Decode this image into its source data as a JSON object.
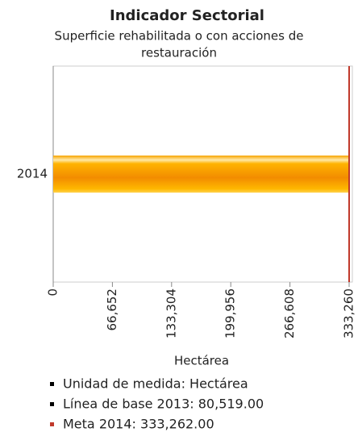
{
  "chart_data": {
    "type": "hbar",
    "title": "Indicador Sectorial",
    "subtitle": [
      "Superficie rehabilitada o con acciones de",
      "restauración"
    ],
    "categories": [
      "2014"
    ],
    "values": [
      333262
    ],
    "xlim": [
      0,
      333260
    ],
    "xticks": [
      0,
      {
        "value": 66652,
        "label": "66,652"
      },
      {
        "value": 133304,
        "label": "133,304"
      },
      {
        "value": 199956,
        "label": "199,956"
      },
      {
        "value": 266608,
        "label": "266,608"
      },
      {
        "value": 333260,
        "label": "333,260"
      }
    ],
    "xlabel": "Hectárea",
    "target_line": {
      "value": 333262,
      "color": "#c0392b"
    },
    "legend": [
      {
        "text": "Unidad de medida: Hectárea",
        "color": "#000000"
      },
      {
        "text": "Línea de base 2013: 80,519.00",
        "color": "#000000"
      },
      {
        "text": "Meta 2014: 333,262.00",
        "color": "#c0392b"
      }
    ]
  }
}
